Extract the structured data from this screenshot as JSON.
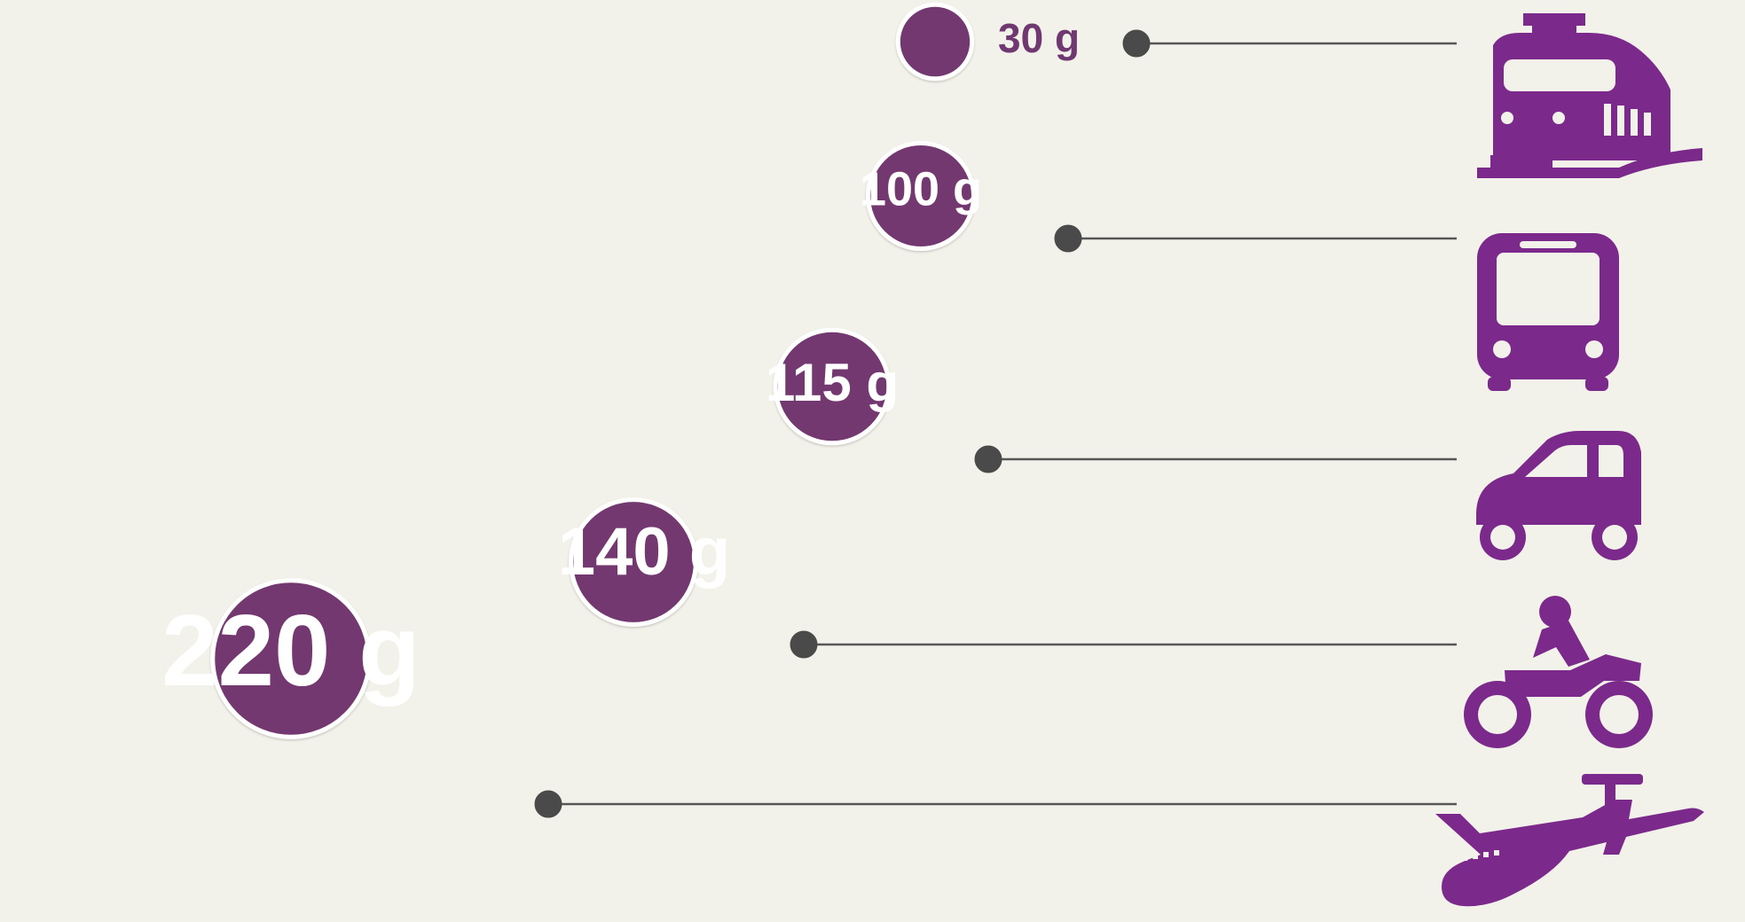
{
  "chart_data": {
    "type": "bubble",
    "unit": "g",
    "colors": {
      "bubble": "#73376f",
      "icon": "#7b2a8b",
      "connector": "#565656",
      "background": "#f3f2ea"
    },
    "series": [
      {
        "label": "220 g",
        "value": 220,
        "icon": "airplane-icon"
      },
      {
        "label": "140 g",
        "value": 140,
        "icon": "motorcycle-icon"
      },
      {
        "label": "115 g",
        "value": 115,
        "icon": "car-icon"
      },
      {
        "label": "100 g",
        "value": 100,
        "icon": "bus-icon"
      },
      {
        "label": "30 g",
        "value": 30,
        "icon": "train-icon"
      }
    ]
  }
}
